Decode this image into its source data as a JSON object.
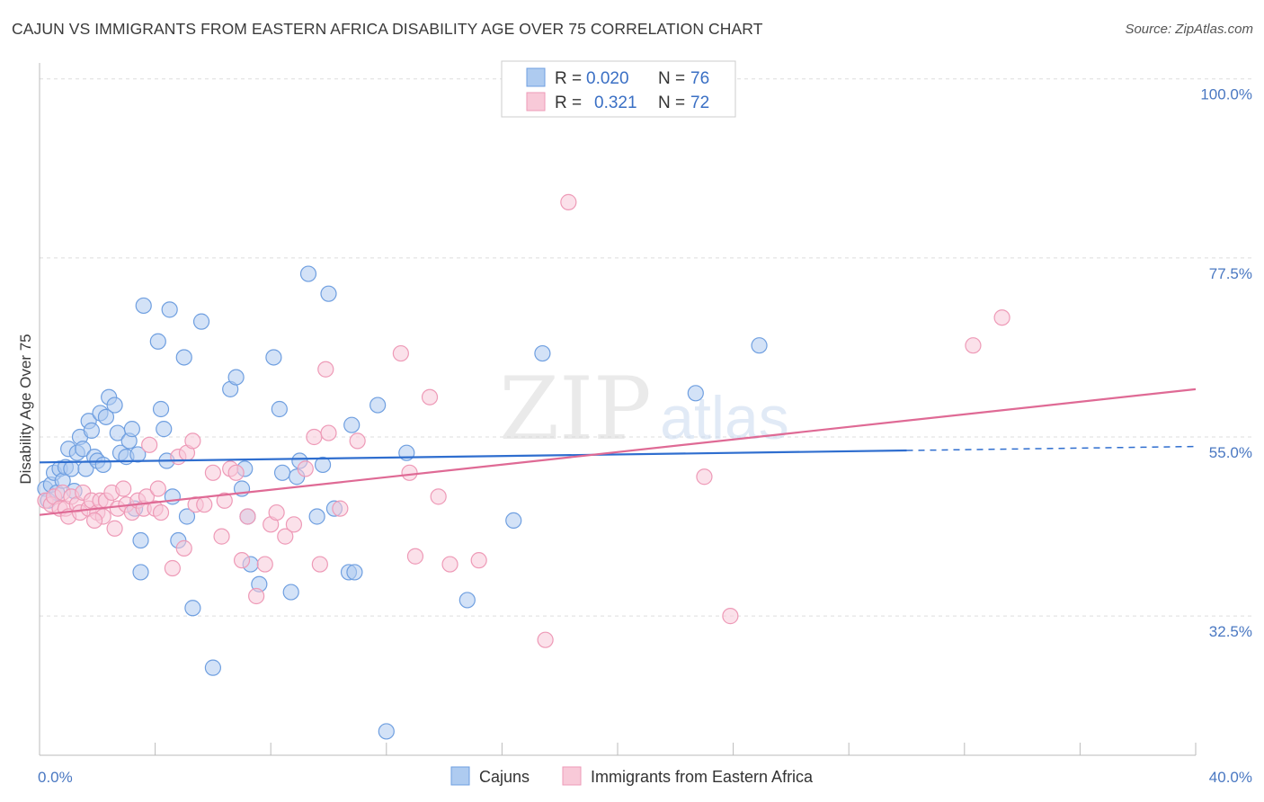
{
  "title": "CAJUN VS IMMIGRANTS FROM EASTERN AFRICA DISABILITY AGE OVER 75 CORRELATION CHART",
  "source": "Source: ZipAtlas.com",
  "watermark": {
    "zip": "ZIP",
    "atlas": "atlas"
  },
  "chart_data": {
    "type": "scatter",
    "ylabel": "Disability Age Over 75",
    "xlim": [
      0,
      40
    ],
    "ylim": [
      15,
      102
    ],
    "x_tick_labels": [
      {
        "value": 0,
        "label": "0.0%"
      },
      {
        "value": 40,
        "label": "40.0%"
      }
    ],
    "x_minor_ticks": [
      4,
      8,
      12,
      16,
      20,
      24,
      28,
      32,
      36,
      40
    ],
    "y_tick_labels": [
      {
        "value": 32.5,
        "label": "32.5%"
      },
      {
        "value": 55.0,
        "label": "55.0%"
      },
      {
        "value": 77.5,
        "label": "77.5%"
      },
      {
        "value": 100.0,
        "label": "100.0%"
      }
    ],
    "legend_stats": [
      {
        "r_label": "R =",
        "r_value": "0.020",
        "n_label": "N =",
        "n_value": "76"
      },
      {
        "r_label": "R =",
        "r_value": "0.321",
        "n_label": "N =",
        "n_value": "72"
      }
    ],
    "series": [
      {
        "name": "Cajuns",
        "color": "#6f9fe0",
        "fill": "#aecbf0",
        "line_color": "#2f6ecf",
        "trend": {
          "x0": 0,
          "y0": 51.8,
          "x1": 30,
          "y1": 53.3,
          "dash_to_x": 40,
          "dash_to_y": 53.8
        },
        "points": [
          [
            0.2,
            48.5
          ],
          [
            0.3,
            47.0
          ],
          [
            0.4,
            49.0
          ],
          [
            0.5,
            50.5
          ],
          [
            0.6,
            48.0
          ],
          [
            0.7,
            51.0
          ],
          [
            0.8,
            49.5
          ],
          [
            0.9,
            51.2
          ],
          [
            1.0,
            53.5
          ],
          [
            1.1,
            51.0
          ],
          [
            1.2,
            48.2
          ],
          [
            1.3,
            53.0
          ],
          [
            1.4,
            55.0
          ],
          [
            1.5,
            53.5
          ],
          [
            1.6,
            51.0
          ],
          [
            1.7,
            57.0
          ],
          [
            1.8,
            55.8
          ],
          [
            1.9,
            52.5
          ],
          [
            2.0,
            52.0
          ],
          [
            2.1,
            58.0
          ],
          [
            2.2,
            51.5
          ],
          [
            2.3,
            57.5
          ],
          [
            2.4,
            60.0
          ],
          [
            2.6,
            59.0
          ],
          [
            2.7,
            55.5
          ],
          [
            2.8,
            53.0
          ],
          [
            3.0,
            52.5
          ],
          [
            3.1,
            54.5
          ],
          [
            3.2,
            56.0
          ],
          [
            3.3,
            46.0
          ],
          [
            3.4,
            52.8
          ],
          [
            3.5,
            42.0
          ],
          [
            3.5,
            38.0
          ],
          [
            3.6,
            71.5
          ],
          [
            4.1,
            67.0
          ],
          [
            4.2,
            58.5
          ],
          [
            4.3,
            56.0
          ],
          [
            4.4,
            52.0
          ],
          [
            4.5,
            71.0
          ],
          [
            4.6,
            47.5
          ],
          [
            4.8,
            42.0
          ],
          [
            5.0,
            65.0
          ],
          [
            5.1,
            45.0
          ],
          [
            5.3,
            33.5
          ],
          [
            5.6,
            69.5
          ],
          [
            6.0,
            26.0
          ],
          [
            6.6,
            61.0
          ],
          [
            6.8,
            62.5
          ],
          [
            7.0,
            48.5
          ],
          [
            7.1,
            51.0
          ],
          [
            7.2,
            45.0
          ],
          [
            7.3,
            39.0
          ],
          [
            7.6,
            36.5
          ],
          [
            8.1,
            65.0
          ],
          [
            8.3,
            58.5
          ],
          [
            8.4,
            50.5
          ],
          [
            8.7,
            35.5
          ],
          [
            8.9,
            50.0
          ],
          [
            9.0,
            52.0
          ],
          [
            9.3,
            75.5
          ],
          [
            9.6,
            45.0
          ],
          [
            9.8,
            51.5
          ],
          [
            10.0,
            73.0
          ],
          [
            10.2,
            46.0
          ],
          [
            10.7,
            38.0
          ],
          [
            10.9,
            38.0
          ],
          [
            10.8,
            56.5
          ],
          [
            11.7,
            59.0
          ],
          [
            12.0,
            18.0
          ],
          [
            12.7,
            53.0
          ],
          [
            14.8,
            34.5
          ],
          [
            16.4,
            44.5
          ],
          [
            17.4,
            65.5
          ],
          [
            22.7,
            60.5
          ],
          [
            24.9,
            66.5
          ]
        ]
      },
      {
        "name": "Immigrants from Eastern Africa",
        "color": "#ee9ab7",
        "fill": "#f8c9d8",
        "line_color": "#df6a95",
        "trend": {
          "x0": 0,
          "y0": 45.2,
          "x1": 40,
          "y1": 61.0
        },
        "points": [
          [
            0.2,
            47.0
          ],
          [
            0.4,
            46.5
          ],
          [
            0.5,
            47.5
          ],
          [
            0.7,
            46.0
          ],
          [
            0.8,
            48.0
          ],
          [
            0.9,
            46.0
          ],
          [
            1.0,
            45.0
          ],
          [
            1.1,
            47.5
          ],
          [
            1.3,
            46.5
          ],
          [
            1.4,
            45.5
          ],
          [
            1.5,
            48.0
          ],
          [
            1.7,
            46.0
          ],
          [
            1.8,
            47.0
          ],
          [
            2.0,
            45.5
          ],
          [
            2.1,
            47.0
          ],
          [
            2.2,
            45.0
          ],
          [
            2.3,
            47.0
          ],
          [
            2.5,
            48.0
          ],
          [
            2.7,
            46.0
          ],
          [
            2.9,
            48.5
          ],
          [
            3.0,
            46.5
          ],
          [
            3.2,
            45.5
          ],
          [
            3.4,
            47.0
          ],
          [
            3.6,
            46.0
          ],
          [
            3.7,
            47.5
          ],
          [
            3.8,
            54.0
          ],
          [
            4.0,
            46.0
          ],
          [
            4.1,
            48.5
          ],
          [
            4.2,
            45.5
          ],
          [
            4.6,
            38.5
          ],
          [
            4.8,
            52.5
          ],
          [
            5.0,
            41.0
          ],
          [
            5.1,
            53.0
          ],
          [
            5.3,
            54.5
          ],
          [
            5.4,
            46.5
          ],
          [
            5.7,
            46.5
          ],
          [
            6.0,
            50.5
          ],
          [
            6.3,
            42.5
          ],
          [
            6.6,
            51.0
          ],
          [
            6.8,
            50.5
          ],
          [
            7.0,
            39.5
          ],
          [
            7.2,
            45.0
          ],
          [
            7.5,
            35.0
          ],
          [
            7.8,
            39.0
          ],
          [
            8.0,
            44.0
          ],
          [
            8.2,
            45.5
          ],
          [
            8.5,
            42.5
          ],
          [
            9.2,
            51.0
          ],
          [
            9.5,
            55.0
          ],
          [
            9.7,
            39.0
          ],
          [
            9.9,
            63.5
          ],
          [
            10.0,
            55.5
          ],
          [
            11.0,
            54.5
          ],
          [
            12.5,
            65.5
          ],
          [
            12.8,
            50.5
          ],
          [
            13.0,
            40.0
          ],
          [
            13.5,
            60.0
          ],
          [
            13.8,
            47.5
          ],
          [
            14.2,
            39.0
          ],
          [
            15.2,
            39.5
          ],
          [
            17.5,
            29.5
          ],
          [
            18.3,
            84.5
          ],
          [
            23.0,
            50.0
          ],
          [
            23.9,
            32.5
          ],
          [
            32.3,
            66.5
          ],
          [
            33.3,
            70.0
          ],
          [
            1.9,
            44.5
          ],
          [
            2.6,
            43.5
          ],
          [
            6.4,
            47.0
          ],
          [
            8.8,
            44.0
          ],
          [
            10.4,
            46.0
          ]
        ]
      }
    ]
  }
}
